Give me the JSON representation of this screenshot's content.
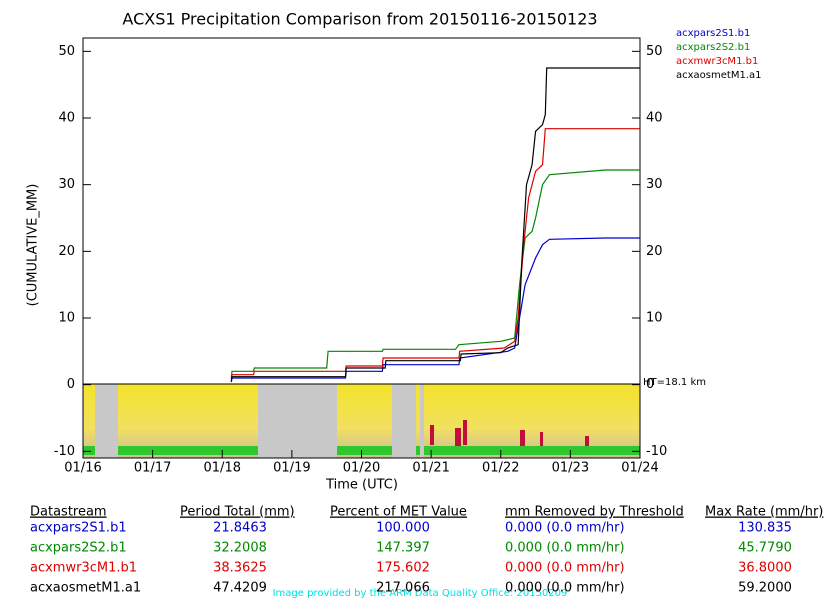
{
  "chart_data": {
    "type": "line",
    "title": "ACXS1 Precipitation Comparison from 20150116-20150123",
    "x_label": "Time (UTC)",
    "y_label": "(CUMULATIVE_MM)",
    "annotation": "HT=18.1 km",
    "xlim": [
      16,
      24
    ],
    "xticks": [
      {
        "value": 16,
        "label": "01/16"
      },
      {
        "value": 17,
        "label": "01/17"
      },
      {
        "value": 18,
        "label": "01/18"
      },
      {
        "value": 19,
        "label": "01/19"
      },
      {
        "value": 20,
        "label": "01/20"
      },
      {
        "value": 21,
        "label": "01/21"
      },
      {
        "value": 22,
        "label": "01/22"
      },
      {
        "value": 23,
        "label": "01/23"
      },
      {
        "value": 24,
        "label": "01/24"
      }
    ],
    "ylim": [
      -11,
      52
    ],
    "yticks": [
      -10,
      0,
      10,
      20,
      30,
      40,
      50
    ],
    "series": [
      {
        "name": "acxpars2S1.b1",
        "color": "#0000cc",
        "x": [
          18.13,
          18.14,
          19.77,
          19.78,
          20.3,
          20.31,
          21.4,
          21.41,
          22.1,
          22.2,
          22.27,
          22.35,
          22.5,
          22.6,
          22.7,
          23.5,
          24
        ],
        "values": [
          0.4,
          1,
          1,
          2,
          2,
          3,
          3,
          4,
          5,
          5.5,
          10,
          15,
          19,
          21,
          21.8,
          22,
          22
        ]
      },
      {
        "name": "acxpars2S2.b1",
        "color": "#008800",
        "x": [
          18.13,
          18.14,
          18.45,
          18.46,
          19.5,
          19.52,
          20.3,
          20.31,
          21.35,
          21.4,
          22.0,
          22.2,
          22.27,
          22.35,
          22.45,
          22.5,
          22.6,
          22.7,
          23.5,
          24
        ],
        "values": [
          1,
          2,
          2,
          2.5,
          2.5,
          5,
          5,
          5.3,
          5.3,
          6,
          6.5,
          7,
          15,
          22,
          23,
          25,
          30,
          31.5,
          32.2,
          32.2
        ]
      },
      {
        "name": "acxmwr3cM1.b1",
        "color": "#dd0000",
        "x": [
          18.13,
          18.14,
          18.45,
          18.46,
          19.77,
          19.78,
          20.3,
          20.31,
          21.4,
          21.41,
          22.05,
          22.2,
          22.25,
          22.32,
          22.4,
          22.5,
          22.6,
          22.64,
          24
        ],
        "values": [
          0.8,
          1.5,
          1.5,
          2,
          2,
          2.8,
          2.8,
          4,
          4,
          5,
          5.5,
          6.5,
          10,
          20,
          28,
          32,
          33,
          38.4,
          38.4
        ]
      },
      {
        "name": "acxaosmetM1.a1",
        "color": "#000000",
        "x": [
          18.13,
          18.14,
          19.77,
          19.78,
          20.34,
          20.35,
          21.42,
          21.43,
          22.0,
          22.1,
          22.25,
          22.3,
          22.37,
          22.45,
          22.5,
          22.6,
          22.64,
          22.66,
          24
        ],
        "values": [
          0.5,
          1.2,
          1.2,
          2.5,
          2.5,
          3.6,
          3.6,
          4.6,
          4.8,
          5.5,
          6,
          18,
          30,
          33,
          38,
          39,
          40.5,
          47.5,
          47.5
        ]
      }
    ]
  },
  "table": {
    "headers": [
      "Datastream",
      "Period Total (mm)",
      "Percent of MET Value",
      "mm Removed by Threshold",
      "Max Rate (mm/hr)"
    ],
    "rows": [
      [
        "acxpars2S1.b1",
        "21.8463",
        "100.000",
        "0.000 (0.0 mm/hr)",
        "130.835"
      ],
      [
        "acxpars2S2.b1",
        "32.2008",
        "147.397",
        "0.000 (0.0 mm/hr)",
        "45.7790"
      ],
      [
        "acxmwr3cM1.b1",
        "38.3625",
        "175.602",
        "0.000 (0.0 mm/hr)",
        "36.8000"
      ],
      [
        "acxaosmetM1.a1",
        "47.4209",
        "217.066",
        "0.000 (0.0 mm/hr)",
        "59.2000"
      ]
    ]
  },
  "footer": "Image provided by the ARM Data Quality Office: 20150209"
}
